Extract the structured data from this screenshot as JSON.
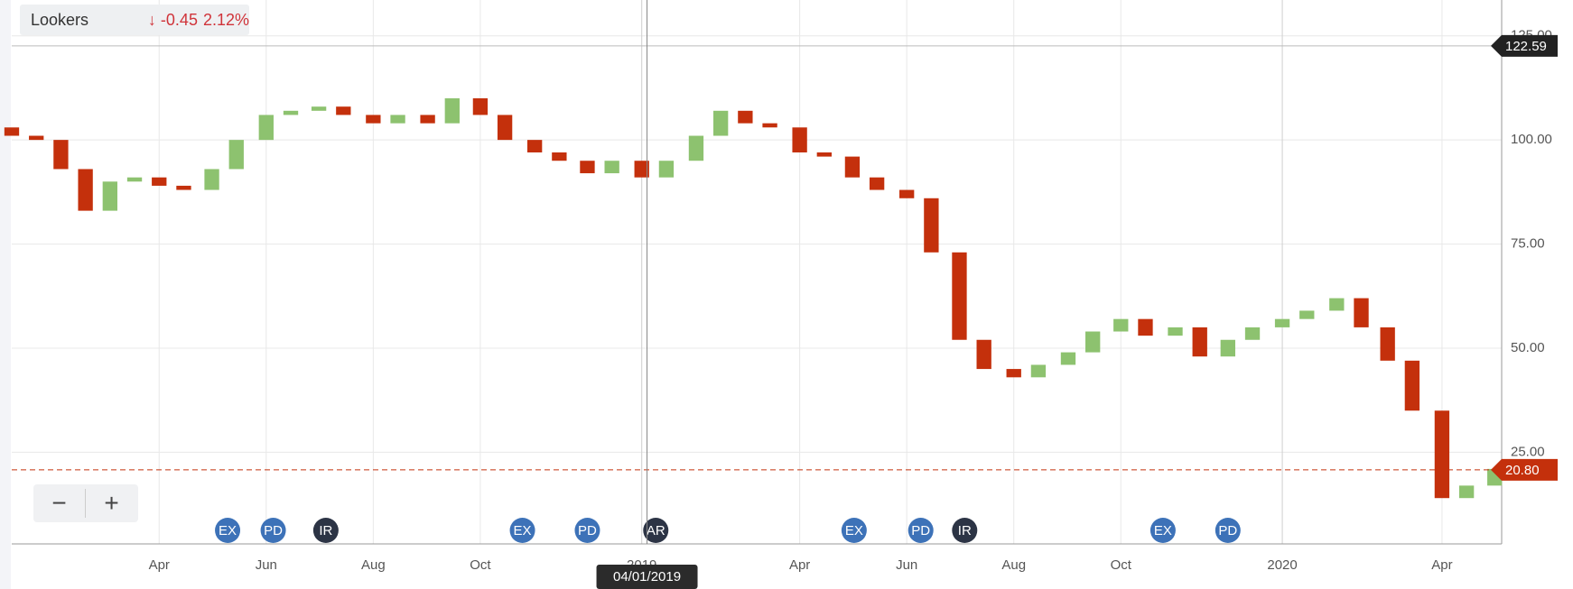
{
  "chart_data": {
    "type": "candlestick",
    "title": "Lookers",
    "change": "-0.45",
    "change_pct": "2.12%",
    "x": [
      "2018-01-07",
      "2018-01-21",
      "2018-02-04",
      "2018-02-18",
      "2018-03-04",
      "2018-03-18",
      "2018-04-01",
      "2018-04-15",
      "2018-05-01",
      "2018-05-15",
      "2018-06-01",
      "2018-06-15",
      "2018-07-01",
      "2018-07-15",
      "2018-08-01",
      "2018-08-15",
      "2018-09-01",
      "2018-09-15",
      "2018-10-01",
      "2018-10-15",
      "2018-11-01",
      "2018-11-15",
      "2018-12-01",
      "2018-12-15",
      "2019-01-01",
      "2019-01-15",
      "2019-02-01",
      "2019-02-15",
      "2019-03-01",
      "2019-03-15",
      "2019-04-01",
      "2019-04-15",
      "2019-05-01",
      "2019-05-15",
      "2019-06-01",
      "2019-06-15",
      "2019-07-01",
      "2019-07-15",
      "2019-08-01",
      "2019-08-15",
      "2019-09-01",
      "2019-09-15",
      "2019-10-01",
      "2019-10-15",
      "2019-11-01",
      "2019-11-15",
      "2019-12-01",
      "2019-12-15",
      "2020-01-01",
      "2020-01-15",
      "2020-02-01",
      "2020-02-15",
      "2020-03-01",
      "2020-03-15",
      "2020-04-01",
      "2020-04-15",
      "2020-05-01"
    ],
    "open": [
      103,
      101,
      100,
      93,
      83,
      90,
      91,
      89,
      88,
      93,
      100,
      106,
      107,
      108,
      106,
      104,
      106,
      104,
      110,
      106,
      100,
      97,
      95,
      92,
      95,
      91,
      95,
      101,
      107,
      104,
      103,
      97,
      96,
      91,
      88,
      86,
      73,
      52,
      45,
      43,
      46,
      49,
      54,
      57,
      53,
      55,
      48,
      52,
      55,
      57,
      59,
      62,
      55,
      47,
      35,
      14,
      17
    ],
    "close": [
      101,
      100,
      93,
      83,
      90,
      91,
      89,
      88,
      93,
      100,
      106,
      107,
      108,
      106,
      104,
      106,
      104,
      110,
      106,
      100,
      97,
      95,
      92,
      95,
      91,
      95,
      101,
      107,
      104,
      103,
      97,
      96,
      91,
      88,
      86,
      73,
      52,
      45,
      43,
      46,
      49,
      54,
      57,
      53,
      55,
      48,
      52,
      55,
      57,
      59,
      62,
      55,
      47,
      35,
      14,
      17,
      21
    ],
    "up_color": "#8dc26f",
    "down_color": "#c4300c",
    "xlim": [
      "2018-01-07",
      "2020-05-05"
    ],
    "xticks": [
      {
        "value": "2018-04-01",
        "label": "Apr"
      },
      {
        "value": "2018-06-01",
        "label": "Jun"
      },
      {
        "value": "2018-08-01",
        "label": "Aug"
      },
      {
        "value": "2018-10-01",
        "label": "Oct"
      },
      {
        "value": "2019-01-01",
        "label": "2019"
      },
      {
        "value": "2019-04-01",
        "label": "Apr"
      },
      {
        "value": "2019-06-01",
        "label": "Jun"
      },
      {
        "value": "2019-08-01",
        "label": "Aug"
      },
      {
        "value": "2019-10-01",
        "label": "Oct"
      },
      {
        "value": "2020-01-01",
        "label": "2020"
      },
      {
        "value": "2020-04-01",
        "label": "Apr"
      }
    ],
    "ylim": [
      3,
      133.6
    ],
    "yticks": [
      {
        "value": 25,
        "label": "25.00"
      },
      {
        "value": 50,
        "label": "50.00"
      },
      {
        "value": 75,
        "label": "75.00"
      },
      {
        "value": 100,
        "label": "100.00"
      },
      {
        "value": 125,
        "label": "125.00"
      }
    ],
    "grid": true,
    "high_line": {
      "value": 122.59,
      "label": "122.59"
    },
    "last_line": {
      "value": 20.8,
      "label": "20.80"
    },
    "crosshair": {
      "x": "2019-01-04",
      "label": "04/01/2019"
    },
    "events": [
      {
        "label": "EX",
        "x": "2018-05-10",
        "color": "#3d72b8"
      },
      {
        "label": "PD",
        "x": "2018-06-05",
        "color": "#3d72b8"
      },
      {
        "label": "IR",
        "x": "2018-07-05",
        "color": "#2c3445"
      },
      {
        "label": "EX",
        "x": "2018-10-25",
        "color": "#3d72b8"
      },
      {
        "label": "PD",
        "x": "2018-12-01",
        "color": "#3d72b8"
      },
      {
        "label": "AR",
        "x": "2019-01-09",
        "color": "#2c3445"
      },
      {
        "label": "EX",
        "x": "2019-05-02",
        "color": "#3d72b8"
      },
      {
        "label": "PD",
        "x": "2019-06-09",
        "color": "#3d72b8"
      },
      {
        "label": "IR",
        "x": "2019-07-04",
        "color": "#2c3445"
      },
      {
        "label": "EX",
        "x": "2019-10-25",
        "color": "#3d72b8"
      },
      {
        "label": "PD",
        "x": "2019-12-01",
        "color": "#3d72b8"
      }
    ]
  }
}
